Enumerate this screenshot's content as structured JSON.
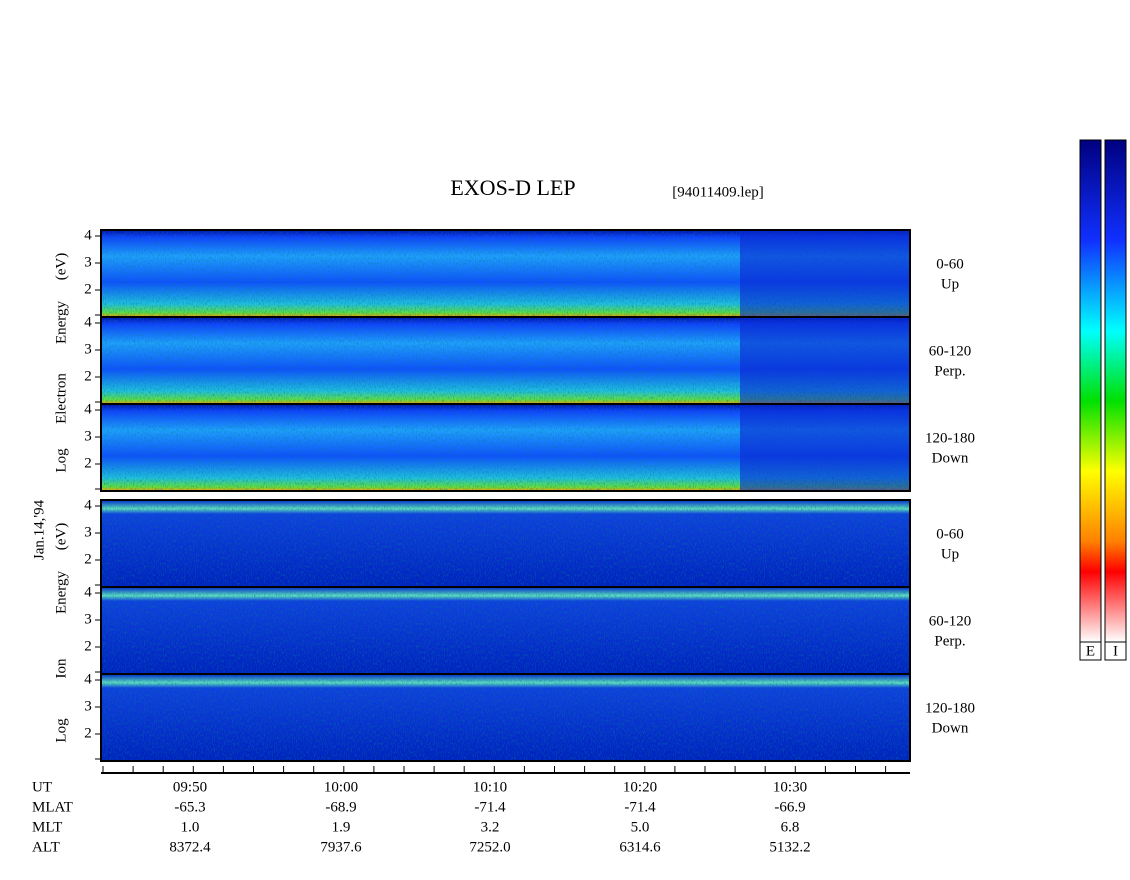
{
  "header": {
    "title": "EXOS-D LEP",
    "file": "[94011409.lep]"
  },
  "date": "Jan.14,'94",
  "electron": {
    "axis_label": [
      "Log",
      "Electron",
      "Energy",
      "(eV)"
    ],
    "panels": [
      {
        "ticks": [
          "4",
          "3",
          "2"
        ],
        "range": "0-60",
        "direction": "Up"
      },
      {
        "ticks": [
          "4",
          "3",
          "2"
        ],
        "range": "60-120",
        "direction": "Perp."
      },
      {
        "ticks": [
          "4",
          "3",
          "2"
        ],
        "range": "120-180",
        "direction": "Down"
      }
    ]
  },
  "ion": {
    "axis_label": [
      "Log",
      "Ion",
      "Energy",
      "(eV)"
    ],
    "panels": [
      {
        "ticks": [
          "4",
          "3",
          "2"
        ],
        "range": "0-60",
        "direction": "Up"
      },
      {
        "ticks": [
          "4",
          "3",
          "2"
        ],
        "range": "60-120",
        "direction": "Perp."
      },
      {
        "ticks": [
          "4",
          "3",
          "2"
        ],
        "range": "120-180",
        "direction": "Down"
      }
    ]
  },
  "time_axis": {
    "rows": [
      {
        "label": "UT",
        "values": [
          "09:50",
          "10:00",
          "10:10",
          "10:20",
          "10:30"
        ]
      },
      {
        "label": "MLAT",
        "values": [
          "-65.3",
          "-68.9",
          "-71.4",
          "-71.4",
          "-66.9"
        ]
      },
      {
        "label": "MLT",
        "values": [
          "1.0",
          "1.9",
          "3.2",
          "5.0",
          "6.8"
        ]
      },
      {
        "label": "ALT",
        "values": [
          "8372.4",
          "7937.6",
          "7252.0",
          "6314.6",
          "5132.2"
        ]
      }
    ]
  },
  "colorbars": [
    "E",
    "I"
  ]
}
